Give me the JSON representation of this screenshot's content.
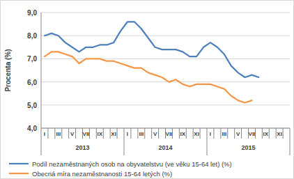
{
  "chart_data": {
    "type": "line",
    "y_label": "Procenta (%)",
    "categories": [
      "I",
      null,
      "III",
      null,
      "V",
      null,
      "VII",
      null,
      "IX",
      null,
      "XI",
      null,
      "I",
      null,
      "III",
      null,
      "V",
      null,
      "VII",
      null,
      "IX",
      null,
      "XI",
      null,
      "I",
      null,
      "III",
      null,
      "V",
      null,
      "VII",
      null,
      "IX",
      null,
      "XI",
      null
    ],
    "x_groups": [
      "2013",
      "2014",
      "2015"
    ],
    "series": [
      {
        "name": "Podíl nezaměstnaných osob na obyvatelstvu (ve věku 15-64 let) (%)",
        "color": "#4f81bd",
        "values": [
          8.0,
          8.1,
          8.0,
          7.7,
          7.5,
          7.3,
          7.5,
          7.5,
          7.6,
          7.6,
          7.7,
          8.2,
          8.6,
          8.6,
          8.3,
          7.9,
          7.5,
          7.4,
          7.4,
          7.4,
          7.3,
          7.1,
          7.1,
          7.5,
          7.7,
          7.5,
          7.2,
          6.7,
          6.4,
          6.2,
          6.3,
          6.2,
          null,
          null,
          null,
          null
        ]
      },
      {
        "name": "Obecná míra nezaměstnanosti 15-64 letých (%)",
        "color": "#f79646",
        "values": [
          7.1,
          7.3,
          7.3,
          7.2,
          7.1,
          6.8,
          7.0,
          7.0,
          7.0,
          6.9,
          6.9,
          6.8,
          6.7,
          6.6,
          6.6,
          6.4,
          6.3,
          6.2,
          6.0,
          6.1,
          5.9,
          5.8,
          5.9,
          5.9,
          5.9,
          5.8,
          5.7,
          5.4,
          5.2,
          5.1,
          5.2,
          null,
          null,
          null,
          null,
          null
        ]
      }
    ],
    "ylim": [
      4,
      9
    ],
    "yticks": [
      {
        "value": 4,
        "label": "4,0"
      },
      {
        "value": 5,
        "label": "5,0"
      },
      {
        "value": 6,
        "label": "6,0"
      },
      {
        "value": 7,
        "label": "7,0"
      },
      {
        "value": 8,
        "label": "8,0"
      },
      {
        "value": 9,
        "label": "9,0"
      }
    ],
    "grid": true,
    "legend": "bottom"
  }
}
